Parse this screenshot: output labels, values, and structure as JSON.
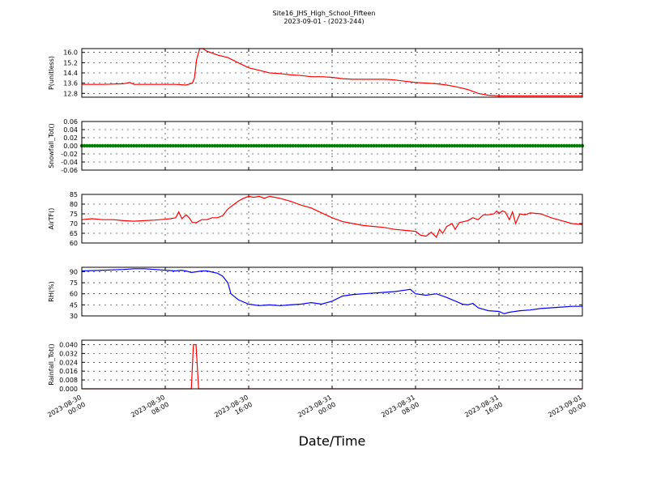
{
  "figure": {
    "title_line1": "Site16_JHS_High_School_Fifteen",
    "title_line2": "2023-09-01 - (2023-244)",
    "xlabel": "Date/Time"
  },
  "chart_data": {
    "type": "line",
    "x_axis": {
      "range_hours": [
        0,
        48
      ],
      "tick_hours": [
        0,
        8,
        16,
        24,
        32,
        40,
        48
      ],
      "tick_labels": [
        [
          "2023-08-30",
          "00:00"
        ],
        [
          "2023-08-30",
          "08:00"
        ],
        [
          "2023-08-30",
          "16:00"
        ],
        [
          "2023-08-31",
          "00:00"
        ],
        [
          "2023-08-31",
          "08:00"
        ],
        [
          "2023-08-31",
          "16:00"
        ],
        [
          "2023-09-01",
          "00:00"
        ]
      ],
      "grid": true
    },
    "panels": [
      {
        "ylabel": "P(unitless)",
        "color": "#ff0000",
        "ylim": [
          12.5,
          16.3
        ],
        "yticks": [
          12.8,
          13.6,
          14.4,
          15.2,
          16.0
        ],
        "ytick_labels": [
          "12.8",
          "13.6",
          "14.4",
          "15.2",
          "16.0"
        ],
        "points": [
          [
            0,
            13.5
          ],
          [
            2,
            13.5
          ],
          [
            4,
            13.55
          ],
          [
            4.6,
            13.65
          ],
          [
            5,
            13.5
          ],
          [
            6,
            13.5
          ],
          [
            8,
            13.5
          ],
          [
            9,
            13.5
          ],
          [
            10,
            13.45
          ],
          [
            10.6,
            13.6
          ],
          [
            10.8,
            14.0
          ],
          [
            11,
            15.4
          ],
          [
            11.3,
            16.3
          ],
          [
            11.6,
            16.3
          ],
          [
            12,
            16.1
          ],
          [
            13,
            15.8
          ],
          [
            14,
            15.6
          ],
          [
            15,
            15.2
          ],
          [
            16,
            14.8
          ],
          [
            17,
            14.6
          ],
          [
            18,
            14.4
          ],
          [
            19,
            14.35
          ],
          [
            20,
            14.25
          ],
          [
            21,
            14.2
          ],
          [
            22,
            14.1
          ],
          [
            23,
            14.1
          ],
          [
            24,
            14.05
          ],
          [
            25,
            13.95
          ],
          [
            26,
            13.9
          ],
          [
            27,
            13.9
          ],
          [
            28,
            13.9
          ],
          [
            29,
            13.9
          ],
          [
            30,
            13.85
          ],
          [
            31,
            13.75
          ],
          [
            32,
            13.65
          ],
          [
            33,
            13.6
          ],
          [
            34,
            13.55
          ],
          [
            35,
            13.45
          ],
          [
            36,
            13.3
          ],
          [
            37,
            13.1
          ],
          [
            38,
            12.8
          ],
          [
            39,
            12.65
          ],
          [
            40,
            12.6
          ],
          [
            42,
            12.6
          ],
          [
            44,
            12.6
          ],
          [
            46,
            12.6
          ],
          [
            48,
            12.6
          ]
        ]
      },
      {
        "ylabel": "Snowfall_Tot()",
        "color": "#008000",
        "style": "markers",
        "ylim": [
          -0.06,
          0.06
        ],
        "yticks": [
          -0.06,
          -0.04,
          -0.02,
          0.0,
          0.02,
          0.04,
          0.06
        ],
        "ytick_labels": [
          "-0.06",
          "-0.04",
          "-0.02",
          "0.00",
          "0.02",
          "0.04",
          "0.06"
        ],
        "constant_value": 0.0
      },
      {
        "ylabel": "AirTF()",
        "color": "#ff0000",
        "ylim": [
          60,
          85
        ],
        "yticks": [
          60,
          65,
          70,
          75,
          80,
          85
        ],
        "ytick_labels": [
          "60",
          "65",
          "70",
          "75",
          "80",
          "85"
        ],
        "points": [
          [
            0,
            72
          ],
          [
            1,
            72.5
          ],
          [
            2,
            72
          ],
          [
            3,
            72
          ],
          [
            4,
            71.5
          ],
          [
            5,
            71.2
          ],
          [
            6,
            71.5
          ],
          [
            7,
            71.8
          ],
          [
            8,
            72.2
          ],
          [
            8.5,
            72.5
          ],
          [
            9,
            73
          ],
          [
            9.3,
            76
          ],
          [
            9.6,
            72.5
          ],
          [
            10,
            74.5
          ],
          [
            10.3,
            73
          ],
          [
            10.6,
            70.5
          ],
          [
            11,
            70.5
          ],
          [
            11.5,
            72
          ],
          [
            12,
            72
          ],
          [
            12.5,
            73
          ],
          [
            13,
            73
          ],
          [
            13.5,
            74
          ],
          [
            14,
            77.5
          ],
          [
            15,
            81.5
          ],
          [
            15.5,
            83
          ],
          [
            16,
            84
          ],
          [
            16.5,
            83.5
          ],
          [
            17,
            84
          ],
          [
            17.5,
            83
          ],
          [
            18,
            84
          ],
          [
            18.5,
            83.5
          ],
          [
            19,
            83
          ],
          [
            20,
            81.5
          ],
          [
            21,
            79.5
          ],
          [
            22,
            78
          ],
          [
            23,
            75.5
          ],
          [
            24,
            73
          ],
          [
            25,
            71
          ],
          [
            26,
            70
          ],
          [
            27,
            69
          ],
          [
            28,
            68.5
          ],
          [
            29,
            68
          ],
          [
            30,
            67
          ],
          [
            31,
            66.5
          ],
          [
            32,
            66
          ],
          [
            32.5,
            64
          ],
          [
            33,
            63.5
          ],
          [
            33.5,
            65.5
          ],
          [
            34,
            63
          ],
          [
            34.3,
            67
          ],
          [
            34.6,
            65
          ],
          [
            35,
            68.5
          ],
          [
            35.5,
            70
          ],
          [
            35.8,
            67
          ],
          [
            36.2,
            70.5
          ],
          [
            37,
            71.5
          ],
          [
            37.5,
            73
          ],
          [
            38,
            72
          ],
          [
            38.5,
            74.5
          ],
          [
            39,
            74.5
          ],
          [
            39.5,
            75
          ],
          [
            39.8,
            76.5
          ],
          [
            40,
            75
          ],
          [
            40.3,
            76.5
          ],
          [
            40.6,
            76
          ],
          [
            41,
            72
          ],
          [
            41.3,
            76
          ],
          [
            41.6,
            70
          ],
          [
            42,
            75
          ],
          [
            42.5,
            74.5
          ],
          [
            43,
            75.5
          ],
          [
            44,
            75
          ],
          [
            45,
            73
          ],
          [
            46,
            71.5
          ],
          [
            47,
            70
          ],
          [
            48,
            69.5
          ]
        ]
      },
      {
        "ylabel": "RH(%)",
        "color": "#0000ff",
        "ylim": [
          30,
          96
        ],
        "yticks": [
          30,
          45,
          60,
          75,
          90
        ],
        "ytick_labels": [
          "30",
          "45",
          "60",
          "75",
          "90"
        ],
        "points": [
          [
            0,
            91
          ],
          [
            2,
            92
          ],
          [
            4,
            93
          ],
          [
            5,
            94
          ],
          [
            6,
            94
          ],
          [
            7,
            93
          ],
          [
            8,
            92
          ],
          [
            9,
            91
          ],
          [
            9.5,
            92
          ],
          [
            10,
            91
          ],
          [
            10.5,
            89
          ],
          [
            11,
            90
          ],
          [
            11.5,
            91
          ],
          [
            12,
            91
          ],
          [
            13,
            88
          ],
          [
            13.5,
            84
          ],
          [
            14,
            75
          ],
          [
            14.3,
            60
          ],
          [
            15,
            52
          ],
          [
            16,
            46
          ],
          [
            17,
            44
          ],
          [
            18,
            45
          ],
          [
            19,
            44
          ],
          [
            20,
            45
          ],
          [
            21,
            46
          ],
          [
            22,
            48
          ],
          [
            23,
            46
          ],
          [
            24,
            50
          ],
          [
            25,
            57
          ],
          [
            26,
            59
          ],
          [
            27,
            60
          ],
          [
            28,
            61
          ],
          [
            29,
            62
          ],
          [
            30,
            63
          ],
          [
            31,
            65
          ],
          [
            31.5,
            66
          ],
          [
            32,
            60
          ],
          [
            33,
            58
          ],
          [
            34,
            60
          ],
          [
            35,
            55
          ],
          [
            36,
            49
          ],
          [
            36.5,
            46
          ],
          [
            37,
            45
          ],
          [
            37.5,
            47
          ],
          [
            38,
            41
          ],
          [
            38.5,
            39
          ],
          [
            39,
            37
          ],
          [
            40,
            36
          ],
          [
            40.5,
            33
          ],
          [
            41,
            35
          ],
          [
            42,
            37
          ],
          [
            43,
            38
          ],
          [
            44,
            40
          ],
          [
            45,
            41
          ],
          [
            46,
            42
          ],
          [
            47,
            43
          ],
          [
            48,
            43
          ]
        ]
      },
      {
        "ylabel": "Rainfall_Tot()",
        "color": "#ff0000",
        "ylim": [
          0,
          0.044
        ],
        "yticks": [
          0.0,
          0.008,
          0.016,
          0.024,
          0.032,
          0.04
        ],
        "ytick_labels": [
          "0.000",
          "0.008",
          "0.016",
          "0.024",
          "0.032",
          "0.040"
        ],
        "points": [
          [
            0,
            0
          ],
          [
            10.5,
            0
          ],
          [
            10.7,
            0.04
          ],
          [
            10.95,
            0.04
          ],
          [
            11.2,
            0
          ],
          [
            48,
            0
          ]
        ]
      }
    ]
  }
}
